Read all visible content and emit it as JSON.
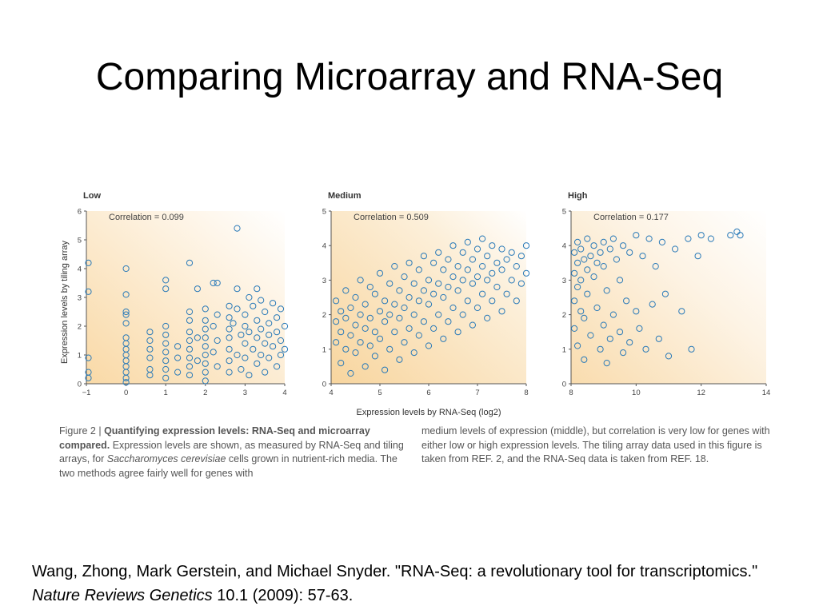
{
  "slide": {
    "title": "Comparing Microarray and RNA-Seq"
  },
  "figure": {
    "ylabel": "Expression levels by tiling array",
    "xlabel": "Expression levels by RNA-Seq (log2)",
    "caption": {
      "figure_label": "Figure 2 |",
      "bold_title": "Quantifying expression levels: RNA-Seq and microarray compared.",
      "text_before_species": "Expression levels are shown, as measured by RNA-Seq and tiling arrays, for",
      "species": "Saccharomyces cerevisiae",
      "text_after_species": "cells grown in nutrient-rich media. The two methods agree fairly well for genes with medium levels of expression (middle), but correlation is very low for genes with either low or high expression levels. The tiling array data used in this figure is taken from REF. 2, and the RNA-Seq data is taken from REF. 18."
    }
  },
  "chart_data": [
    {
      "type": "scatter",
      "title": "Low",
      "annotation": "Correlation = 0.099",
      "xlim": [
        -1,
        4
      ],
      "ylim": [
        0,
        6
      ],
      "xticks": [
        "−1",
        "0",
        "1",
        "2",
        "3",
        "4"
      ],
      "yticks": [
        "0",
        "1",
        "2",
        "3",
        "4",
        "5",
        "6"
      ],
      "correlation": 0.099,
      "color": "#2a7ab8",
      "points": [
        [
          -0.95,
          0.4
        ],
        [
          -0.95,
          0.2
        ],
        [
          -0.95,
          0.9
        ],
        [
          -0.95,
          3.2
        ],
        [
          -0.95,
          4.2
        ],
        [
          0,
          4.0
        ],
        [
          0,
          3.1
        ],
        [
          0,
          2.5
        ],
        [
          0,
          2.4
        ],
        [
          0,
          2.1
        ],
        [
          0,
          1.6
        ],
        [
          0,
          1.4
        ],
        [
          0,
          1.2
        ],
        [
          0,
          1.0
        ],
        [
          0,
          0.8
        ],
        [
          0,
          0.6
        ],
        [
          0,
          0.4
        ],
        [
          0,
          0.2
        ],
        [
          0,
          0.05
        ],
        [
          0.6,
          1.8
        ],
        [
          0.6,
          1.5
        ],
        [
          0.6,
          1.2
        ],
        [
          0.6,
          0.9
        ],
        [
          0.6,
          0.5
        ],
        [
          0.6,
          0.3
        ],
        [
          1,
          3.6
        ],
        [
          1,
          3.3
        ],
        [
          1,
          2.0
        ],
        [
          1,
          1.7
        ],
        [
          1,
          1.4
        ],
        [
          1,
          1.1
        ],
        [
          1,
          0.8
        ],
        [
          1,
          0.5
        ],
        [
          1,
          0.2
        ],
        [
          1.3,
          1.3
        ],
        [
          1.3,
          0.9
        ],
        [
          1.3,
          0.4
        ],
        [
          1.6,
          4.2
        ],
        [
          1.6,
          2.5
        ],
        [
          1.6,
          2.2
        ],
        [
          1.6,
          1.8
        ],
        [
          1.6,
          1.5
        ],
        [
          1.6,
          1.2
        ],
        [
          1.6,
          0.9
        ],
        [
          1.6,
          0.6
        ],
        [
          1.6,
          0.3
        ],
        [
          1.8,
          3.3
        ],
        [
          1.8,
          1.6
        ],
        [
          1.8,
          0.8
        ],
        [
          2,
          2.6
        ],
        [
          2,
          2.2
        ],
        [
          2,
          1.9
        ],
        [
          2,
          1.6
        ],
        [
          2,
          1.3
        ],
        [
          2,
          1.0
        ],
        [
          2,
          0.7
        ],
        [
          2,
          0.4
        ],
        [
          2,
          0.1
        ],
        [
          2.2,
          3.5
        ],
        [
          2.2,
          2.0
        ],
        [
          2.2,
          1.1
        ],
        [
          2.3,
          3.5
        ],
        [
          2.3,
          2.4
        ],
        [
          2.3,
          1.5
        ],
        [
          2.3,
          0.6
        ],
        [
          2.6,
          2.7
        ],
        [
          2.6,
          2.3
        ],
        [
          2.6,
          1.9
        ],
        [
          2.6,
          1.6
        ],
        [
          2.6,
          1.2
        ],
        [
          2.6,
          0.8
        ],
        [
          2.6,
          0.4
        ],
        [
          2.7,
          2.1
        ],
        [
          2.8,
          5.4
        ],
        [
          2.8,
          2.6
        ],
        [
          2.8,
          1.0
        ],
        [
          2.8,
          3.3
        ],
        [
          2.9,
          1.7
        ],
        [
          2.9,
          0.5
        ],
        [
          3.0,
          2.4
        ],
        [
          3.0,
          2.0
        ],
        [
          3.0,
          1.4
        ],
        [
          3.0,
          0.9
        ],
        [
          3.1,
          3.0
        ],
        [
          3.1,
          1.8
        ],
        [
          3.1,
          0.3
        ],
        [
          3.2,
          2.7
        ],
        [
          3.2,
          1.2
        ],
        [
          3.3,
          3.3
        ],
        [
          3.3,
          2.2
        ],
        [
          3.3,
          1.6
        ],
        [
          3.3,
          0.7
        ],
        [
          3.4,
          2.9
        ],
        [
          3.4,
          1.9
        ],
        [
          3.4,
          1.0
        ],
        [
          3.5,
          2.5
        ],
        [
          3.5,
          1.4
        ],
        [
          3.5,
          0.4
        ],
        [
          3.6,
          2.1
        ],
        [
          3.6,
          1.7
        ],
        [
          3.6,
          0.9
        ],
        [
          3.7,
          2.8
        ],
        [
          3.7,
          1.3
        ],
        [
          3.8,
          2.3
        ],
        [
          3.8,
          1.8
        ],
        [
          3.8,
          0.6
        ],
        [
          3.9,
          2.6
        ],
        [
          3.9,
          1.5
        ],
        [
          3.9,
          1.0
        ],
        [
          4.0,
          2.0
        ],
        [
          4.0,
          1.2
        ]
      ]
    },
    {
      "type": "scatter",
      "title": "Medium",
      "annotation": "Correlation = 0.509",
      "xlim": [
        4,
        8
      ],
      "ylim": [
        0,
        5
      ],
      "xticks": [
        "4",
        "5",
        "6",
        "7",
        "8"
      ],
      "yticks": [
        "0",
        "1",
        "2",
        "3",
        "4",
        "5"
      ],
      "correlation": 0.509,
      "color": "#2a7ab8",
      "points": [
        [
          4.1,
          1.2
        ],
        [
          4.1,
          1.8
        ],
        [
          4.1,
          2.4
        ],
        [
          4.2,
          0.6
        ],
        [
          4.2,
          1.5
        ],
        [
          4.2,
          2.1
        ],
        [
          4.3,
          1.0
        ],
        [
          4.3,
          1.9
        ],
        [
          4.3,
          2.7
        ],
        [
          4.4,
          0.3
        ],
        [
          4.4,
          1.4
        ],
        [
          4.4,
          2.2
        ],
        [
          4.5,
          0.9
        ],
        [
          4.5,
          1.7
        ],
        [
          4.5,
          2.5
        ],
        [
          4.6,
          1.2
        ],
        [
          4.6,
          2.0
        ],
        [
          4.6,
          3.0
        ],
        [
          4.7,
          0.5
        ],
        [
          4.7,
          1.6
        ],
        [
          4.7,
          2.3
        ],
        [
          4.8,
          1.1
        ],
        [
          4.8,
          1.9
        ],
        [
          4.8,
          2.8
        ],
        [
          4.9,
          0.8
        ],
        [
          4.9,
          1.5
        ],
        [
          4.9,
          2.6
        ],
        [
          5.0,
          1.3
        ],
        [
          5.0,
          2.1
        ],
        [
          5.0,
          3.2
        ],
        [
          5.1,
          0.4
        ],
        [
          5.1,
          1.8
        ],
        [
          5.1,
          2.4
        ],
        [
          5.2,
          1.0
        ],
        [
          5.2,
          2.0
        ],
        [
          5.2,
          2.9
        ],
        [
          5.3,
          1.5
        ],
        [
          5.3,
          2.3
        ],
        [
          5.3,
          3.4
        ],
        [
          5.4,
          0.7
        ],
        [
          5.4,
          1.9
        ],
        [
          5.4,
          2.7
        ],
        [
          5.5,
          1.2
        ],
        [
          5.5,
          2.2
        ],
        [
          5.5,
          3.1
        ],
        [
          5.6,
          1.6
        ],
        [
          5.6,
          2.5
        ],
        [
          5.6,
          3.5
        ],
        [
          5.7,
          0.9
        ],
        [
          5.7,
          2.0
        ],
        [
          5.7,
          2.9
        ],
        [
          5.8,
          1.4
        ],
        [
          5.8,
          2.4
        ],
        [
          5.8,
          3.3
        ],
        [
          5.9,
          1.8
        ],
        [
          5.9,
          2.7
        ],
        [
          5.9,
          3.7
        ],
        [
          6.0,
          1.1
        ],
        [
          6.0,
          2.3
        ],
        [
          6.0,
          3.0
        ],
        [
          6.1,
          1.6
        ],
        [
          6.1,
          2.6
        ],
        [
          6.1,
          3.5
        ],
        [
          6.2,
          2.0
        ],
        [
          6.2,
          2.9
        ],
        [
          6.2,
          3.8
        ],
        [
          6.3,
          1.3
        ],
        [
          6.3,
          2.5
        ],
        [
          6.3,
          3.3
        ],
        [
          6.4,
          1.8
        ],
        [
          6.4,
          2.8
        ],
        [
          6.4,
          3.6
        ],
        [
          6.5,
          2.2
        ],
        [
          6.5,
          3.1
        ],
        [
          6.5,
          4.0
        ],
        [
          6.6,
          1.5
        ],
        [
          6.6,
          2.7
        ],
        [
          6.6,
          3.4
        ],
        [
          6.7,
          2.0
        ],
        [
          6.7,
          3.0
        ],
        [
          6.7,
          3.8
        ],
        [
          6.8,
          2.4
        ],
        [
          6.8,
          3.3
        ],
        [
          6.8,
          4.1
        ],
        [
          6.9,
          1.7
        ],
        [
          6.9,
          2.9
        ],
        [
          6.9,
          3.6
        ],
        [
          7.0,
          2.2
        ],
        [
          7.0,
          3.1
        ],
        [
          7.0,
          3.9
        ],
        [
          7.1,
          2.6
        ],
        [
          7.1,
          3.4
        ],
        [
          7.1,
          4.2
        ],
        [
          7.2,
          1.9
        ],
        [
          7.2,
          3.0
        ],
        [
          7.2,
          3.7
        ],
        [
          7.3,
          2.4
        ],
        [
          7.3,
          3.2
        ],
        [
          7.3,
          4.0
        ],
        [
          7.4,
          2.8
        ],
        [
          7.4,
          3.5
        ],
        [
          7.5,
          2.1
        ],
        [
          7.5,
          3.3
        ],
        [
          7.5,
          3.9
        ],
        [
          7.6,
          2.6
        ],
        [
          7.6,
          3.6
        ],
        [
          7.7,
          3.0
        ],
        [
          7.7,
          3.8
        ],
        [
          7.8,
          2.4
        ],
        [
          7.8,
          3.4
        ],
        [
          7.9,
          2.9
        ],
        [
          7.9,
          3.7
        ],
        [
          8.0,
          3.2
        ],
        [
          8.0,
          4.0
        ]
      ]
    },
    {
      "type": "scatter",
      "title": "High",
      "annotation": "Correlation = 0.177",
      "xlim": [
        8,
        14
      ],
      "ylim": [
        0,
        5
      ],
      "xticks": [
        "8",
        "10",
        "12",
        "14"
      ],
      "yticks": [
        "0",
        "1",
        "2",
        "3",
        "4",
        "5"
      ],
      "correlation": 0.177,
      "color": "#2a7ab8",
      "points": [
        [
          8.1,
          3.8
        ],
        [
          8.1,
          3.2
        ],
        [
          8.1,
          2.4
        ],
        [
          8.1,
          1.6
        ],
        [
          8.2,
          4.1
        ],
        [
          8.2,
          3.5
        ],
        [
          8.2,
          2.8
        ],
        [
          8.2,
          1.1
        ],
        [
          8.3,
          3.9
        ],
        [
          8.3,
          3.0
        ],
        [
          8.3,
          2.1
        ],
        [
          8.4,
          3.6
        ],
        [
          8.4,
          1.9
        ],
        [
          8.4,
          0.7
        ],
        [
          8.5,
          4.2
        ],
        [
          8.5,
          3.3
        ],
        [
          8.5,
          2.6
        ],
        [
          8.6,
          3.7
        ],
        [
          8.6,
          1.4
        ],
        [
          8.7,
          4.0
        ],
        [
          8.7,
          3.1
        ],
        [
          8.8,
          3.5
        ],
        [
          8.8,
          2.2
        ],
        [
          8.9,
          3.8
        ],
        [
          8.9,
          1.0
        ],
        [
          9.0,
          4.1
        ],
        [
          9.0,
          3.4
        ],
        [
          9.0,
          1.7
        ],
        [
          9.1,
          2.7
        ],
        [
          9.1,
          0.6
        ],
        [
          9.2,
          3.9
        ],
        [
          9.2,
          1.3
        ],
        [
          9.3,
          4.2
        ],
        [
          9.3,
          2.0
        ],
        [
          9.4,
          3.6
        ],
        [
          9.5,
          1.5
        ],
        [
          9.5,
          3.0
        ],
        [
          9.6,
          4.0
        ],
        [
          9.6,
          0.9
        ],
        [
          9.7,
          2.4
        ],
        [
          9.8,
          3.8
        ],
        [
          9.8,
          1.2
        ],
        [
          10.0,
          4.3
        ],
        [
          10.0,
          2.1
        ],
        [
          10.1,
          1.6
        ],
        [
          10.2,
          3.7
        ],
        [
          10.3,
          1.0
        ],
        [
          10.4,
          4.2
        ],
        [
          10.5,
          2.3
        ],
        [
          10.6,
          3.4
        ],
        [
          10.7,
          1.3
        ],
        [
          10.8,
          4.1
        ],
        [
          10.9,
          2.6
        ],
        [
          11.0,
          0.8
        ],
        [
          11.2,
          3.9
        ],
        [
          11.4,
          2.1
        ],
        [
          11.6,
          4.2
        ],
        [
          11.7,
          1.0
        ],
        [
          11.9,
          3.7
        ],
        [
          12.0,
          4.3
        ],
        [
          12.3,
          4.2
        ],
        [
          12.9,
          4.3
        ],
        [
          13.1,
          4.4
        ],
        [
          13.2,
          4.3
        ]
      ]
    }
  ],
  "citation": {
    "text_before": "Wang, Zhong, Mark Gerstein, and Michael Snyder. \"RNA-Seq: a revolutionary tool for transcriptomics.\"",
    "journal": "Nature Reviews Genetics",
    "text_after": "10.1 (2009): 57-63."
  }
}
